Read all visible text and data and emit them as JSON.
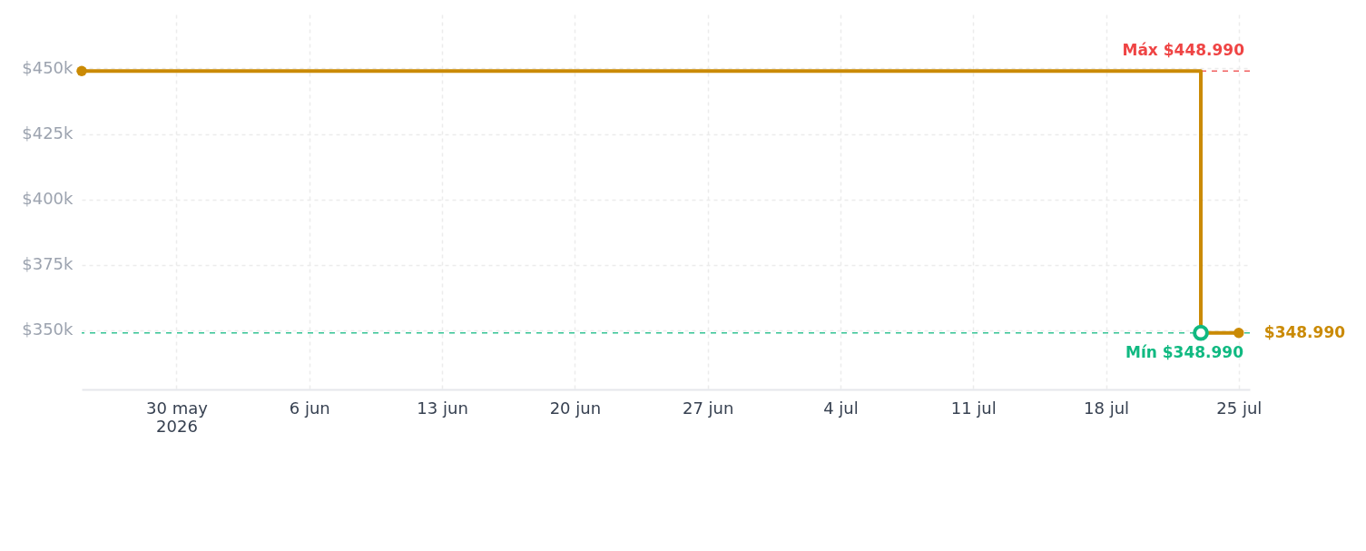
{
  "chart_data": {
    "type": "step",
    "x": [
      "2026-05-25",
      "2026-07-23",
      "2026-07-25"
    ],
    "series": [
      {
        "color": "#ca8a04",
        "values": [
          448990,
          348990,
          348990
        ],
        "value_labels": [
          null,
          null,
          "$348.990"
        ]
      }
    ],
    "xlim": [
      "2026-05-25",
      "2026-07-25T14:00"
    ],
    "xticks": [
      {
        "value": "2026-05-30",
        "label": "30 may\n2026"
      },
      {
        "value": "2026-06-06",
        "label": "6 jun"
      },
      {
        "value": "2026-06-13",
        "label": "13 jun"
      },
      {
        "value": "2026-06-20",
        "label": "20 jun"
      },
      {
        "value": "2026-06-27",
        "label": "27 jun"
      },
      {
        "value": "2026-07-04",
        "label": "4 jul"
      },
      {
        "value": "2026-07-11",
        "label": "11 jul"
      },
      {
        "value": "2026-07-18",
        "label": "18 jul"
      },
      {
        "value": "2026-07-25",
        "label": "25 jul"
      }
    ],
    "ylim": [
      327400,
      470600
    ],
    "yticks": [
      {
        "value": 350000,
        "label": "$350k"
      },
      {
        "value": 375000,
        "label": "$375k"
      },
      {
        "value": 400000,
        "label": "$400k"
      },
      {
        "value": 425000,
        "label": "$425k"
      },
      {
        "value": 450000,
        "label": "$450k"
      }
    ],
    "ref_lines": [
      {
        "axis": "y",
        "value": 448990,
        "label": "Máx $448.990",
        "color": "#ef4444",
        "line_style": "dashed"
      },
      {
        "axis": "y",
        "value": 348990,
        "color": "#10b981",
        "line_style": "dashed"
      }
    ],
    "annotations": [
      {
        "text": "Mín $348.990",
        "x": "2026-07-23",
        "y": 348990
      }
    ],
    "grid": true,
    "marker": "circle",
    "line_style": "solid"
  }
}
